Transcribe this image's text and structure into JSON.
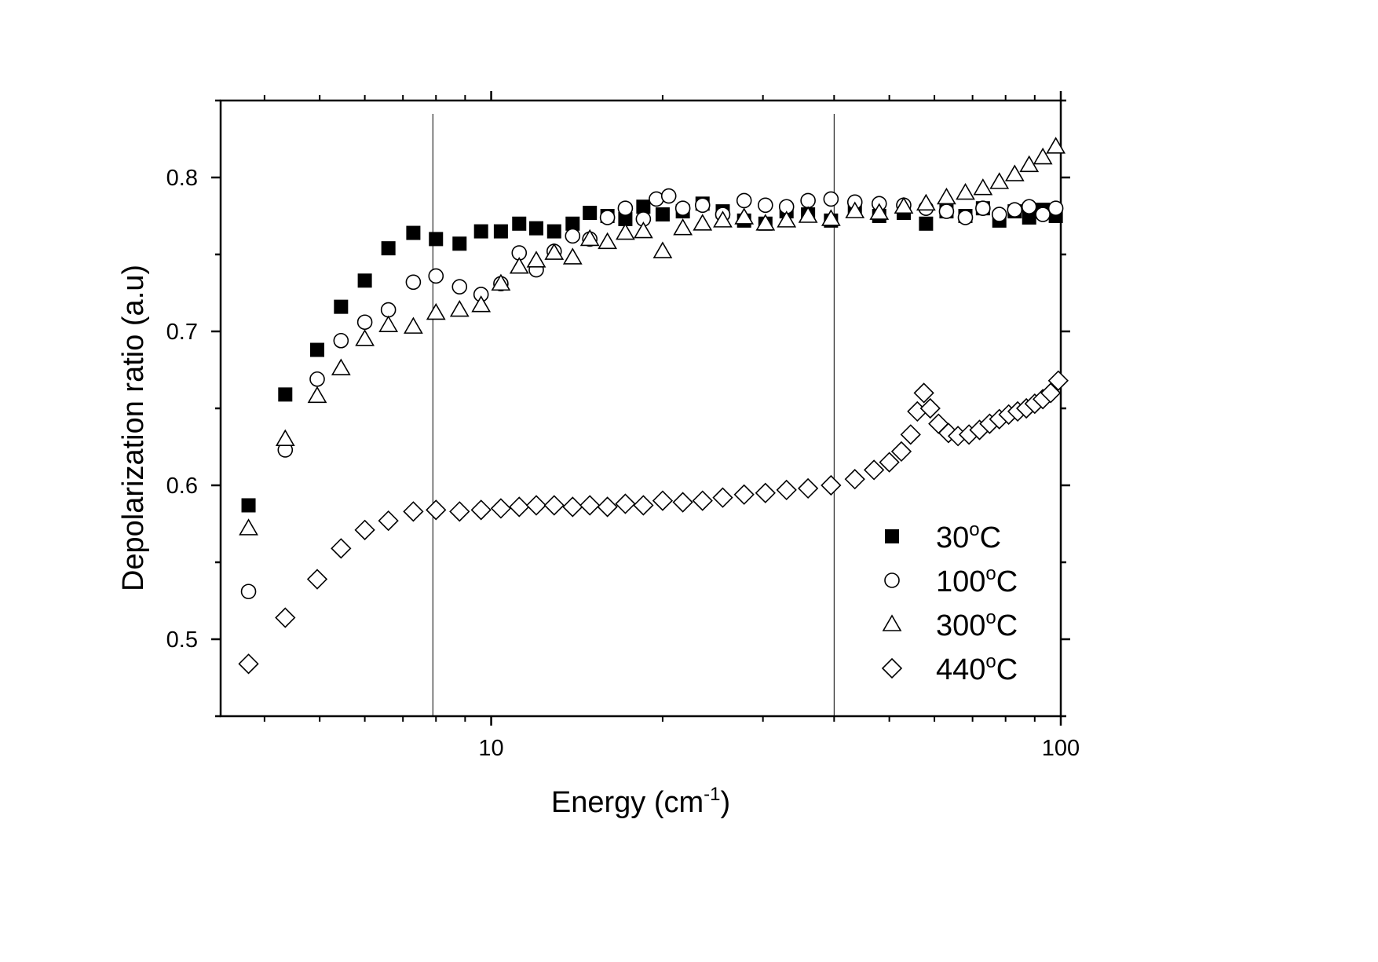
{
  "chart_data": {
    "type": "scatter",
    "xscale": "log",
    "xlabel": "Energy (cm",
    "xlabel_sup": "-1",
    "xlabel_tail": ")",
    "ylabel": "Depolarization ratio (a.u)",
    "xlim": [
      3.35,
      100
    ],
    "ylim": [
      0.45,
      0.85
    ],
    "x_ticks": [
      {
        "value": 10,
        "label": "10"
      },
      {
        "value": 100,
        "label": "100"
      }
    ],
    "y_ticks": [
      {
        "value": 0.5,
        "label": "0.5"
      },
      {
        "value": 0.6,
        "label": "0.6"
      },
      {
        "value": 0.7,
        "label": "0.7"
      },
      {
        "value": 0.8,
        "label": "0.8"
      }
    ],
    "reference_lines_x": [
      7.9,
      40
    ],
    "legend_position": "bottom-right",
    "series": [
      {
        "name": "30",
        "unit": "C",
        "marker": "filled-square",
        "x": [
          3.75,
          4.35,
          4.95,
          5.45,
          6.0,
          6.6,
          7.3,
          8.0,
          8.8,
          9.6,
          10.4,
          11.2,
          12.0,
          12.9,
          13.9,
          14.9,
          16.0,
          17.2,
          18.5,
          20.0,
          21.7,
          23.5,
          25.5,
          27.8,
          30.3,
          33.0,
          36.0,
          39.5,
          43.5,
          48.0,
          53.0,
          58.0,
          63.0,
          68.0,
          73.0,
          78.0,
          83.0,
          88.0,
          93.0,
          98.0
        ],
        "y": [
          0.587,
          0.659,
          0.688,
          0.716,
          0.733,
          0.754,
          0.764,
          0.76,
          0.757,
          0.765,
          0.765,
          0.77,
          0.767,
          0.765,
          0.77,
          0.777,
          0.775,
          0.773,
          0.781,
          0.776,
          0.778,
          0.783,
          0.778,
          0.772,
          0.77,
          0.778,
          0.776,
          0.772,
          0.78,
          0.775,
          0.777,
          0.77,
          0.778,
          0.775,
          0.78,
          0.772,
          0.778,
          0.774,
          0.779,
          0.775
        ]
      },
      {
        "name": "100",
        "unit": "C",
        "marker": "open-circle",
        "x": [
          3.75,
          4.35,
          4.95,
          5.45,
          6.0,
          6.6,
          7.3,
          8.0,
          8.8,
          9.6,
          10.4,
          11.2,
          12.0,
          12.9,
          13.9,
          14.9,
          16.0,
          17.2,
          18.5,
          19.5,
          20.5,
          21.7,
          23.5,
          25.5,
          27.8,
          30.3,
          33.0,
          36.0,
          39.5,
          43.5,
          48.0,
          53.0,
          58.0,
          63.0,
          68.0,
          73.0,
          78.0,
          83.0,
          88.0,
          93.0,
          98.0
        ],
        "y": [
          0.531,
          0.623,
          0.669,
          0.694,
          0.706,
          0.714,
          0.732,
          0.736,
          0.729,
          0.724,
          0.731,
          0.751,
          0.74,
          0.752,
          0.762,
          0.76,
          0.774,
          0.78,
          0.773,
          0.786,
          0.788,
          0.78,
          0.782,
          0.776,
          0.785,
          0.782,
          0.781,
          0.785,
          0.786,
          0.784,
          0.783,
          0.782,
          0.78,
          0.778,
          0.774,
          0.78,
          0.776,
          0.779,
          0.781,
          0.776,
          0.78
        ]
      },
      {
        "name": "300",
        "unit": "C",
        "marker": "open-triangle",
        "x": [
          3.75,
          4.35,
          4.95,
          5.45,
          6.0,
          6.6,
          7.3,
          8.0,
          8.8,
          9.6,
          10.4,
          11.2,
          12.0,
          12.9,
          13.9,
          14.9,
          16.0,
          17.2,
          18.5,
          20.0,
          21.7,
          23.5,
          25.5,
          27.8,
          30.3,
          33.0,
          36.0,
          39.5,
          43.5,
          48.0,
          53.0,
          58.0,
          63.0,
          68.0,
          73.0,
          78.0,
          83.0,
          88.0,
          93.0,
          98.0
        ],
        "y": [
          0.572,
          0.63,
          0.658,
          0.676,
          0.695,
          0.704,
          0.703,
          0.712,
          0.714,
          0.717,
          0.731,
          0.742,
          0.746,
          0.751,
          0.748,
          0.76,
          0.758,
          0.764,
          0.765,
          0.752,
          0.767,
          0.77,
          0.772,
          0.774,
          0.77,
          0.772,
          0.775,
          0.773,
          0.778,
          0.777,
          0.781,
          0.783,
          0.787,
          0.79,
          0.793,
          0.797,
          0.802,
          0.808,
          0.813,
          0.82
        ]
      },
      {
        "name": "440",
        "unit": "C",
        "marker": "open-diamond",
        "x": [
          3.75,
          4.35,
          4.95,
          5.45,
          6.0,
          6.6,
          7.3,
          8.0,
          8.8,
          9.6,
          10.4,
          11.2,
          12.0,
          12.9,
          13.9,
          14.9,
          16.0,
          17.2,
          18.5,
          20.0,
          21.7,
          23.5,
          25.5,
          27.8,
          30.3,
          33.0,
          36.0,
          39.5,
          43.5,
          47.0,
          50.0,
          52.5,
          54.5,
          56.0,
          57.5,
          59.0,
          61.0,
          63.5,
          66.0,
          69.0,
          72.0,
          75.0,
          78.0,
          81.0,
          84.0,
          87.0,
          90.0,
          93.0,
          96.0,
          99.0
        ],
        "y": [
          0.484,
          0.514,
          0.539,
          0.559,
          0.571,
          0.577,
          0.583,
          0.584,
          0.583,
          0.584,
          0.585,
          0.586,
          0.587,
          0.587,
          0.586,
          0.587,
          0.586,
          0.588,
          0.587,
          0.59,
          0.589,
          0.59,
          0.592,
          0.594,
          0.595,
          0.597,
          0.598,
          0.6,
          0.604,
          0.61,
          0.615,
          0.622,
          0.633,
          0.648,
          0.66,
          0.65,
          0.64,
          0.634,
          0.632,
          0.633,
          0.636,
          0.64,
          0.643,
          0.646,
          0.648,
          0.65,
          0.653,
          0.656,
          0.66,
          0.668
        ]
      }
    ]
  }
}
